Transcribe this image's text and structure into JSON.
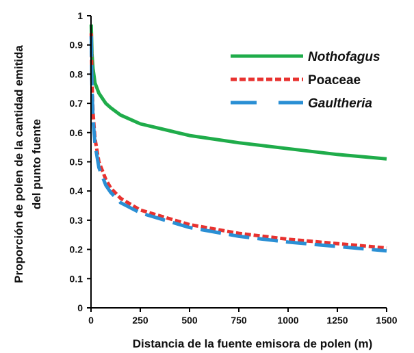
{
  "chart_data": {
    "type": "line",
    "xlabel": "Distancia de la fuente emisora de polen (m)",
    "ylabel_line1": "Proporción de polen de la cantidad emitida",
    "ylabel_line2": "del punto fuente",
    "xlim": [
      0,
      1500
    ],
    "ylim": [
      0,
      1
    ],
    "x_ticks": [
      "0",
      "250",
      "500",
      "750",
      "1000",
      "1250",
      "1500"
    ],
    "y_ticks": [
      "0",
      "0.1",
      "0.2",
      "0.3",
      "0.4",
      "0.5",
      "0.6",
      "0.7",
      "0.8",
      "0.9",
      "1"
    ],
    "grid": false,
    "legend_position": "top-right",
    "series": [
      {
        "name": "Nothofagus",
        "italic": true,
        "color": "#1fac4a",
        "style": "solid",
        "x": [
          1,
          5,
          10,
          20,
          40,
          75,
          100,
          150,
          250,
          500,
          750,
          1000,
          1250,
          1500
        ],
        "y": [
          0.97,
          0.87,
          0.82,
          0.77,
          0.735,
          0.7,
          0.685,
          0.66,
          0.63,
          0.59,
          0.565,
          0.545,
          0.525,
          0.51
        ]
      },
      {
        "name": "Poaceae",
        "italic": false,
        "color": "#e8322f",
        "style": "dotted",
        "x": [
          1,
          5,
          10,
          20,
          40,
          75,
          100,
          150,
          250,
          500,
          750,
          1000,
          1250,
          1500
        ],
        "y": [
          0.94,
          0.78,
          0.67,
          0.58,
          0.5,
          0.44,
          0.41,
          0.375,
          0.335,
          0.285,
          0.255,
          0.235,
          0.22,
          0.205
        ]
      },
      {
        "name": "Gaultheria",
        "italic": true,
        "color": "#2a8fd4",
        "style": "long-dash",
        "x": [
          1,
          5,
          10,
          20,
          40,
          75,
          100,
          150,
          250,
          500,
          750,
          1000,
          1250,
          1500
        ],
        "y": [
          0.93,
          0.76,
          0.65,
          0.56,
          0.48,
          0.42,
          0.395,
          0.36,
          0.325,
          0.275,
          0.245,
          0.225,
          0.21,
          0.195
        ]
      }
    ]
  }
}
